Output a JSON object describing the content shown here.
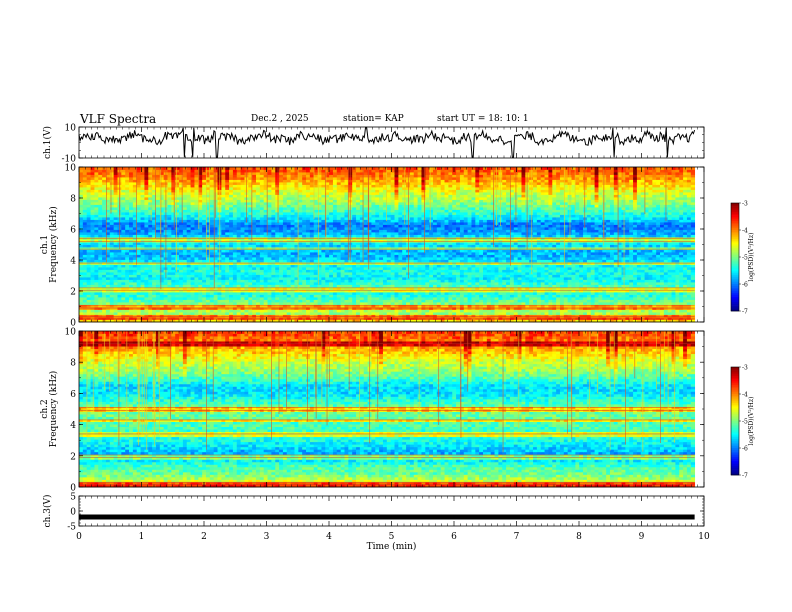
{
  "header": {
    "title": "VLF Spectra",
    "date": "Dec.2  , 2025",
    "station": "station= KAP",
    "start": "start  UT  =   18: 10: 1"
  },
  "chart_data": [
    {
      "type": "line",
      "name": "ch1-voltage",
      "ylabel": "ch.1(V)",
      "ylim": [
        -10,
        10
      ],
      "yticks": [
        10,
        -10
      ],
      "xlim": [
        0,
        10
      ],
      "x_end": 9.85,
      "baseline_v": 3,
      "noise_amplitude_v": 4,
      "spikes": [
        1.68,
        1.83,
        2.2,
        4.6,
        6.3,
        6.95,
        8.55,
        9.4
      ]
    },
    {
      "type": "heatmap",
      "name": "ch1-spectrogram",
      "ylabel_top": "ch.1",
      "ylabel": "Frequency (kHz)",
      "ylim": [
        0,
        10
      ],
      "yticks": [
        0,
        2,
        4,
        6,
        8,
        10
      ],
      "xlim": [
        0,
        10
      ],
      "data_end_min": 9.85,
      "colorbar": {
        "label": "log(PSD)(V²/Hz)",
        "range": [
          -7,
          -3
        ],
        "ticks": [
          "-3",
          "-4",
          "-5",
          "-6",
          "-7"
        ]
      },
      "freq_profile_log_psd": [
        [
          0,
          -4.2
        ],
        [
          0.3,
          -4.6
        ],
        [
          0.6,
          -4.9
        ],
        [
          0.9,
          -4.7
        ],
        [
          1.2,
          -5.0
        ],
        [
          1.6,
          -5.3
        ],
        [
          2.0,
          -5.4
        ],
        [
          2.3,
          -5.2
        ],
        [
          2.8,
          -5.5
        ],
        [
          3.2,
          -5.4
        ],
        [
          3.8,
          -5.5
        ],
        [
          4.3,
          -5.8
        ],
        [
          4.8,
          -5.7
        ],
        [
          5.3,
          -5.4
        ],
        [
          5.8,
          -5.9
        ],
        [
          6.3,
          -6.0
        ],
        [
          6.8,
          -5.5
        ],
        [
          7.3,
          -5.2
        ],
        [
          7.8,
          -4.9
        ],
        [
          8.3,
          -4.7
        ],
        [
          8.8,
          -4.4
        ],
        [
          9.3,
          -4.1
        ],
        [
          10,
          -3.8
        ]
      ],
      "lines_khz": [
        0.2,
        0.35,
        0.9,
        1.05,
        2.05,
        2.2,
        3.8,
        4.7,
        5.2,
        5.4
      ]
    },
    {
      "type": "heatmap",
      "name": "ch2-spectrogram",
      "ylabel_top": "ch.2",
      "ylabel": "Frequency (kHz)",
      "ylim": [
        0,
        10
      ],
      "yticks": [
        0,
        2,
        4,
        6,
        8,
        10
      ],
      "xlim": [
        0,
        10
      ],
      "data_end_min": 9.85,
      "colorbar": {
        "label": "log(PSD)(V²/Hz)",
        "range": [
          -7,
          -3
        ],
        "ticks": [
          "-3",
          "-4",
          "-5",
          "-6",
          "-7"
        ]
      },
      "freq_profile_log_psd": [
        [
          0,
          -4.2
        ],
        [
          0.3,
          -4.5
        ],
        [
          0.6,
          -4.9
        ],
        [
          0.9,
          -5.1
        ],
        [
          1.3,
          -5.2
        ],
        [
          1.8,
          -5.6
        ],
        [
          2.2,
          -5.8
        ],
        [
          2.6,
          -5.6
        ],
        [
          3.0,
          -5.4
        ],
        [
          3.5,
          -5.3
        ],
        [
          4.0,
          -5.2
        ],
        [
          4.5,
          -5.1
        ],
        [
          5.0,
          -5.0
        ],
        [
          5.5,
          -5.3
        ],
        [
          6.0,
          -5.6
        ],
        [
          6.5,
          -5.6
        ],
        [
          7.0,
          -5.2
        ],
        [
          7.5,
          -4.9
        ],
        [
          8.0,
          -4.7
        ],
        [
          8.5,
          -4.4
        ],
        [
          9.0,
          -4.1
        ],
        [
          9.5,
          -3.9
        ],
        [
          10,
          -3.7
        ]
      ],
      "lines_khz": [
        0.15,
        0.3,
        1.9,
        2.05,
        3.4,
        4.3,
        4.9,
        5.1,
        9.2
      ]
    },
    {
      "type": "line",
      "name": "ch3-voltage",
      "ylabel": "ch.3(V)",
      "ylim": [
        -5,
        5
      ],
      "yticks": [
        5,
        0,
        -5
      ],
      "xlim": [
        0,
        10
      ],
      "x_end": 9.85,
      "baseline_v": -2
    }
  ],
  "x_axis": {
    "label": "Time (min)",
    "ticks": [
      "0",
      "1",
      "2",
      "3",
      "4",
      "5",
      "6",
      "7",
      "8",
      "9",
      "10"
    ]
  }
}
